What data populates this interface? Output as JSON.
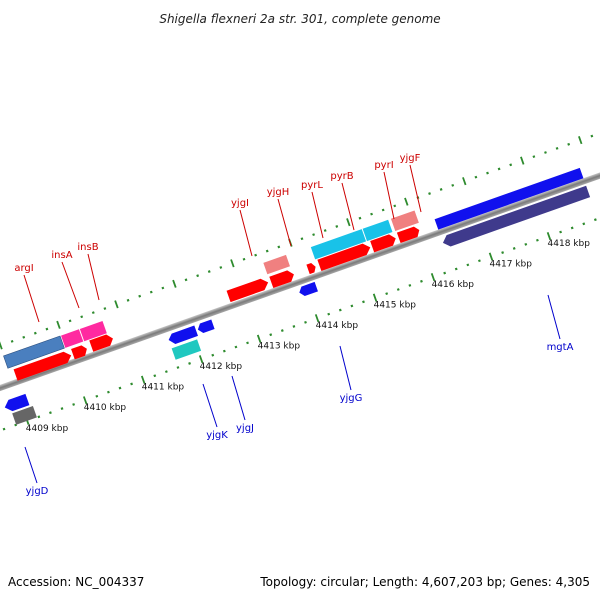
{
  "title": "Shigella flexneri 2a str. 301, complete genome",
  "footer": {
    "accession": "Accession: NC_004337",
    "summary": "Topology: circular; Length: 4,607,203 bp; Genes: 4,305"
  },
  "colors": {
    "background": "#ffffff",
    "backbone": "#8a8a8a",
    "tick_dot": "#2e8b2e",
    "label_top": "#cc0000",
    "label_bottom": "#0000cc",
    "gene_red": "#ff0000",
    "gene_pink": "#ff2aa0",
    "gene_salmon": "#f08080",
    "gene_steel": "#4a7fbf",
    "gene_cyan": "#19c2e8",
    "gene_teal": "#20c8c0",
    "gene_blue": "#1010ee",
    "gene_navy": "#3f3a8c",
    "gene_gray": "#666666"
  },
  "ticks": [
    {
      "label": "4409 kbp"
    },
    {
      "label": "4410 kbp"
    },
    {
      "label": "4411 kbp"
    },
    {
      "label": "4412 kbp"
    },
    {
      "label": "4413 kbp"
    },
    {
      "label": "4414 kbp"
    },
    {
      "label": "4415 kbp"
    },
    {
      "label": "4416 kbp"
    },
    {
      "label": "4417 kbp"
    },
    {
      "label": "4418 kbp"
    }
  ],
  "genes_top": [
    {
      "name": "argI"
    },
    {
      "name": "insA"
    },
    {
      "name": "insB"
    },
    {
      "name": "yjgI"
    },
    {
      "name": "yjgH"
    },
    {
      "name": "pyrL"
    },
    {
      "name": "pyrB"
    },
    {
      "name": "pyrI"
    },
    {
      "name": "yjgF"
    }
  ],
  "genes_bottom": [
    {
      "name": "yjgD"
    },
    {
      "name": "yjgK"
    },
    {
      "name": "yjgJ"
    },
    {
      "name": "yjgG"
    },
    {
      "name": "mgtA"
    }
  ]
}
